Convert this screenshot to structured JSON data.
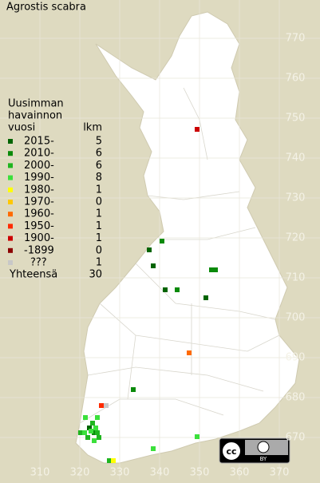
{
  "title": "Agrostis scabra",
  "legend": {
    "heading": [
      "Uusimman",
      "havainnon",
      "vuosi"
    ],
    "count_heading": "lkm",
    "items": [
      {
        "label": "2015-",
        "count": 5,
        "color": "#006400"
      },
      {
        "label": "2010-",
        "count": 6,
        "color": "#0a8a0a"
      },
      {
        "label": "2000-",
        "count": 6,
        "color": "#1fb51f"
      },
      {
        "label": "1990-",
        "count": 8,
        "color": "#3be03b"
      },
      {
        "label": "1980-",
        "count": 1,
        "color": "#ffff00"
      },
      {
        "label": "1970-",
        "count": 0,
        "color": "#ffc800"
      },
      {
        "label": "1960-",
        "count": 1,
        "color": "#ff6a00"
      },
      {
        "label": "1950-",
        "count": 1,
        "color": "#ff2a00"
      },
      {
        "label": "1900-",
        "count": 1,
        "color": "#cc0000"
      },
      {
        "label": "-1899",
        "count": 0,
        "color": "#8b0000"
      },
      {
        "label": "???",
        "count": 1,
        "color": "#c8c8c8"
      }
    ],
    "total_label": "Yhteensä",
    "total": 30
  },
  "xlim": [
    300,
    380.2
  ],
  "ylim": [
    659.4,
    779.6
  ],
  "xticks": [
    310,
    320,
    330,
    340,
    350,
    360,
    370
  ],
  "yticks": [
    670,
    680,
    690,
    700,
    710,
    720,
    730,
    740,
    750,
    760,
    770
  ],
  "points": [
    {
      "x": 337.4,
      "y": 717,
      "class": 0
    },
    {
      "x": 338.4,
      "y": 713,
      "class": 0
    },
    {
      "x": 341.4,
      "y": 707,
      "class": 0
    },
    {
      "x": 351.6,
      "y": 705,
      "class": 0
    },
    {
      "x": 322.4,
      "y": 672.4,
      "class": 0
    },
    {
      "x": 354,
      "y": 712,
      "class": 1
    },
    {
      "x": 353,
      "y": 712,
      "class": 1
    },
    {
      "x": 344.4,
      "y": 707,
      "class": 1
    },
    {
      "x": 333.4,
      "y": 682,
      "class": 1
    },
    {
      "x": 323.6,
      "y": 671.2,
      "class": 1
    },
    {
      "x": 340.6,
      "y": 719.2,
      "class": 1
    },
    {
      "x": 324.4,
      "y": 671.2,
      "class": 2
    },
    {
      "x": 320.2,
      "y": 671.2,
      "class": 2
    },
    {
      "x": 323.2,
      "y": 673.6,
      "class": 2
    },
    {
      "x": 324.8,
      "y": 670,
      "class": 2
    },
    {
      "x": 327.4,
      "y": 664.2,
      "class": 2
    },
    {
      "x": 322,
      "y": 670,
      "class": 2
    },
    {
      "x": 321.4,
      "y": 675,
      "class": 3
    },
    {
      "x": 324.4,
      "y": 675,
      "class": 3
    },
    {
      "x": 322.8,
      "y": 671.6,
      "class": 3
    },
    {
      "x": 324,
      "y": 672.4,
      "class": 3
    },
    {
      "x": 323.6,
      "y": 669.2,
      "class": 3
    },
    {
      "x": 338.4,
      "y": 667.2,
      "class": 3
    },
    {
      "x": 349.4,
      "y": 670.2,
      "class": 3
    },
    {
      "x": 321.2,
      "y": 671.2,
      "class": 3
    },
    {
      "x": 328.4,
      "y": 664.2,
      "class": 4
    },
    {
      "x": 347.4,
      "y": 691.2,
      "class": 6
    },
    {
      "x": 325.4,
      "y": 678,
      "class": 7
    },
    {
      "x": 349.4,
      "y": 747.2,
      "class": 8
    },
    {
      "x": 326.6,
      "y": 678,
      "class": 10
    }
  ],
  "badge": "BY"
}
